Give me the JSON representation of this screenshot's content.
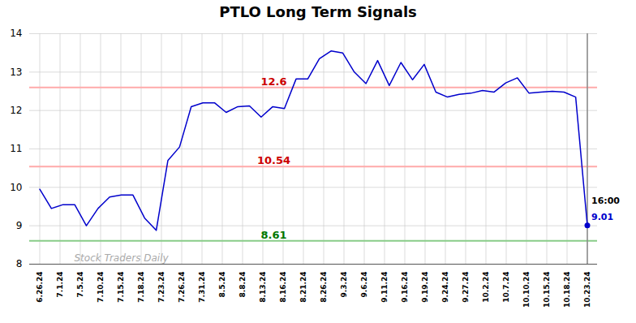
{
  "chart_data": {
    "type": "line",
    "title": "PTLO Long Term Signals",
    "color": "#0000cc",
    "x": [
      0,
      0.574468,
      1.148936,
      1.723404,
      2.297872,
      2.87234,
      3.446809,
      4.021277,
      4.595745,
      5.170213,
      5.744681,
      6.319149,
      6.893617,
      7.468085,
      8.042553,
      8.617021,
      9.191489,
      9.765957,
      10.340426,
      10.914894,
      11.489362,
      12.06383,
      12.638298,
      13.212766,
      13.787234,
      14.361702,
      14.93617,
      15.510638,
      16.085106,
      16.659574,
      17.234043,
      17.808511,
      18.382979,
      18.957447,
      19.531915,
      20.106383,
      20.680851,
      21.255319,
      21.829787,
      22.404255,
      22.978723,
      23.553191,
      24.12766,
      24.702128,
      25.276596,
      25.851064,
      26.425532,
      27
    ],
    "values": [
      9.95,
      9.45,
      9.55,
      9.55,
      9.0,
      9.45,
      9.75,
      9.8,
      9.8,
      9.2,
      8.88,
      10.7,
      11.05,
      12.1,
      12.2,
      12.2,
      11.95,
      12.1,
      12.12,
      11.83,
      12.1,
      12.05,
      12.82,
      12.82,
      13.35,
      13.55,
      13.5,
      13.0,
      12.7,
      13.3,
      12.65,
      13.25,
      12.8,
      13.2,
      12.48,
      12.35,
      12.42,
      12.45,
      12.52,
      12.48,
      12.72,
      12.85,
      12.45,
      12.48,
      12.5,
      12.48,
      12.35,
      9.01
    ],
    "xlim": [
      -0.5,
      27.5
    ],
    "xticks": [
      {
        "value": 0,
        "label": "6.26.24"
      },
      {
        "value": 1,
        "label": "7.1.24"
      },
      {
        "value": 2,
        "label": "7.5.24"
      },
      {
        "value": 3,
        "label": "7.10.24"
      },
      {
        "value": 4,
        "label": "7.15.24"
      },
      {
        "value": 5,
        "label": "7.18.24"
      },
      {
        "value": 6,
        "label": "7.23.24"
      },
      {
        "value": 7,
        "label": "7.26.24"
      },
      {
        "value": 8,
        "label": "7.31.24"
      },
      {
        "value": 9,
        "label": "8.5.24"
      },
      {
        "value": 10,
        "label": "8.8.24"
      },
      {
        "value": 11,
        "label": "8.13.24"
      },
      {
        "value": 12,
        "label": "8.16.24"
      },
      {
        "value": 13,
        "label": "8.21.24"
      },
      {
        "value": 14,
        "label": "8.26.24"
      },
      {
        "value": 15,
        "label": "9.3.24"
      },
      {
        "value": 16,
        "label": "9.6.24"
      },
      {
        "value": 17,
        "label": "9.11.24"
      },
      {
        "value": 18,
        "label": "9.16.24"
      },
      {
        "value": 19,
        "label": "9.19.24"
      },
      {
        "value": 20,
        "label": "9.24.24"
      },
      {
        "value": 21,
        "label": "9.27.24"
      },
      {
        "value": 22,
        "label": "10.2.24"
      },
      {
        "value": 23,
        "label": "10.7.24"
      },
      {
        "value": 24,
        "label": "10.10.24"
      },
      {
        "value": 25,
        "label": "10.15.24"
      },
      {
        "value": 26,
        "label": "10.18.24"
      },
      {
        "value": 27,
        "label": "10.23.24"
      }
    ],
    "ylim": [
      8,
      14
    ],
    "yticks": [
      8,
      9,
      10,
      11,
      12,
      13,
      14
    ],
    "grid": true,
    "grid_color": "#cccccc",
    "hlines": [
      {
        "y": 12.6,
        "color": "#ffaaaa",
        "label": "12.6",
        "label_color": "#cc0000"
      },
      {
        "y": 10.54,
        "color": "#ffaaaa",
        "label": "10.54",
        "label_color": "#cc0000"
      },
      {
        "y": 8.61,
        "color": "#88cc88",
        "label": "8.61",
        "label_color": "#007700"
      }
    ],
    "last_point": {
      "line_color": "#888888",
      "labels": [
        {
          "text": "16:00",
          "color": "#000000"
        },
        {
          "text": "9.01",
          "color": "#0000cc"
        }
      ]
    },
    "watermark": {
      "text": "Stock Traders Daily",
      "color": "#aaaaaa"
    }
  }
}
